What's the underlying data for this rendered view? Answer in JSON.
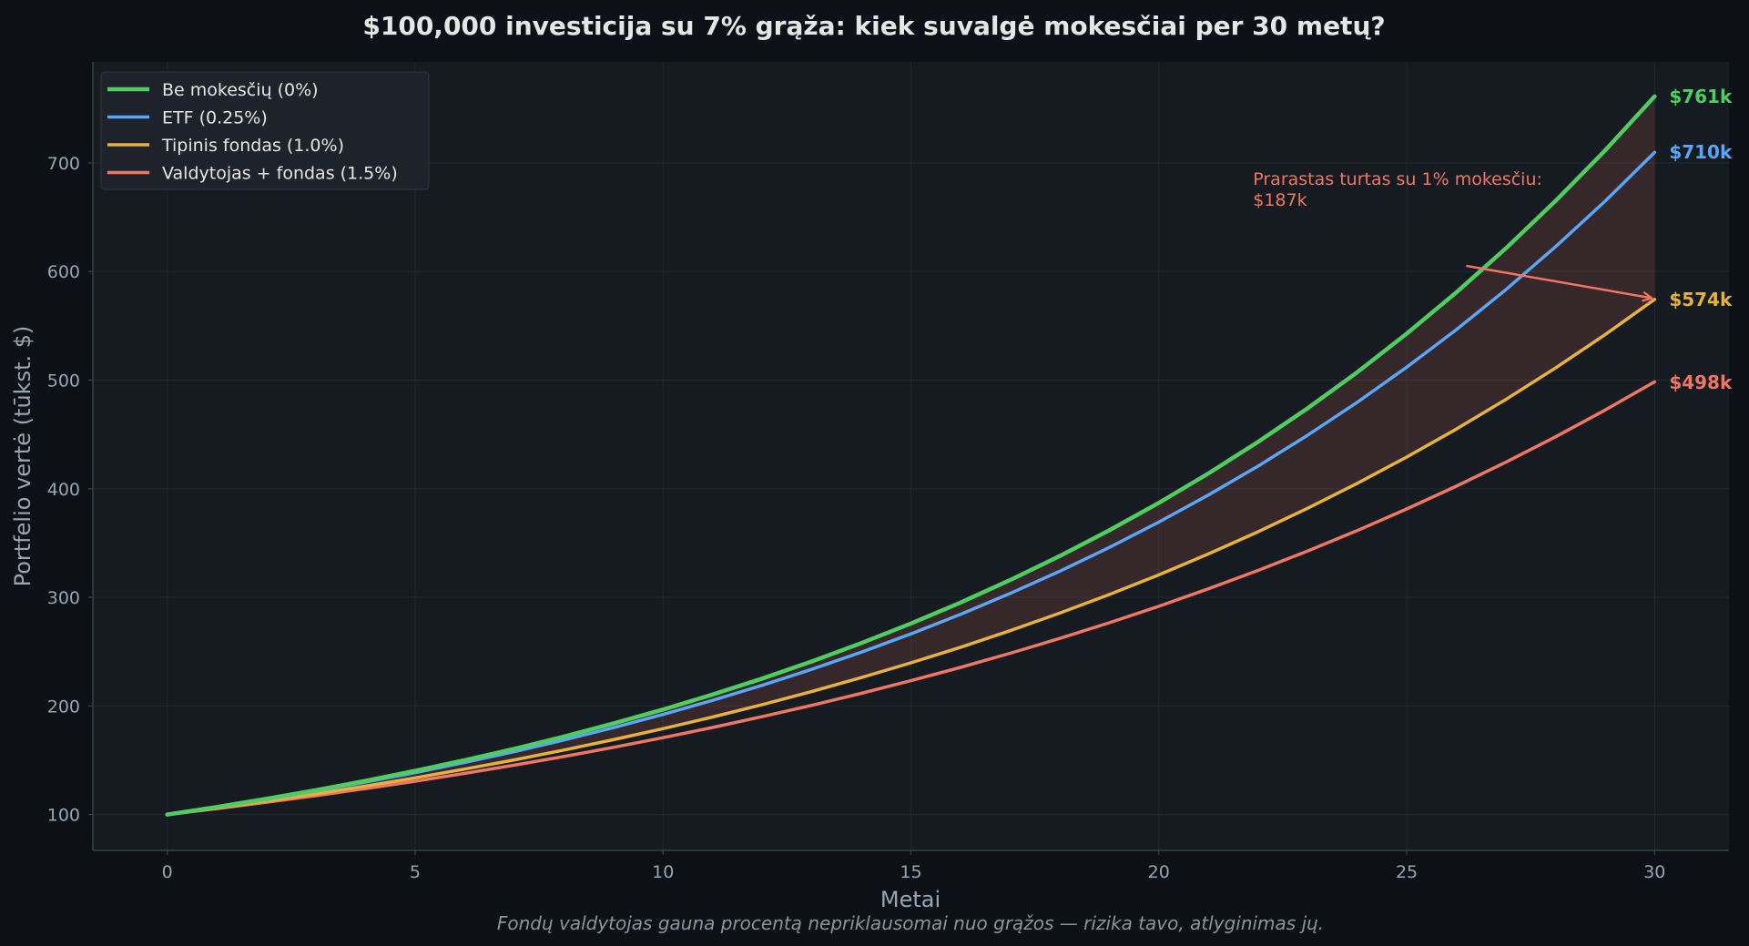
{
  "chart_data": {
    "type": "line",
    "title": "$100,000 investicija su 7% grąža: kiek suvalgė mokesčiai per 30 metų?",
    "xlabel": "Metai",
    "ylabel": "Portfelio vertė (tūkst. $)",
    "caption": "Fondų valdytojas gauna procentą nepriklausomai nuo grąžos — rizika tavo, atlyginimas jų.",
    "xlim": [
      -1.5,
      31.5
    ],
    "ylim": [
      67,
      793
    ],
    "x_ticks": [
      0,
      5,
      10,
      15,
      20,
      25,
      30
    ],
    "y_ticks": [
      100,
      200,
      300,
      400,
      500,
      600,
      700
    ],
    "grid": true,
    "legend_position": "top-left",
    "principal": 100,
    "gross_return": 0.07,
    "years": 30,
    "series": [
      {
        "name": "Be mokesčių (0%)",
        "fee": 0.0,
        "color": "#4fce60",
        "end_label": "$761k",
        "end_value": 761
      },
      {
        "name": "ETF (0.25%)",
        "fee": 0.0025,
        "color": "#58a6f5",
        "end_label": "$710k",
        "end_value": 710
      },
      {
        "name": "Tipinis fondas (1.0%)",
        "fee": 0.01,
        "color": "#e8b13e",
        "end_label": "$574k",
        "end_value": 574
      },
      {
        "name": "Valdytojas + fondas (1.5%)",
        "fee": 0.015,
        "color": "#f07562",
        "end_label": "$498k",
        "end_value": 498
      }
    ],
    "fill_between": {
      "upper_series": 0,
      "lower_series": 2,
      "color": "#f07562"
    },
    "annotation": {
      "lines": [
        "Prarastas turtas su 1% mokesčiu:",
        "$187k"
      ],
      "color": "#f07562",
      "text_at": [
        21.9,
        680
      ],
      "arrow_from": [
        26.2,
        560
      ],
      "arrow_to": [
        30,
        574
      ]
    }
  },
  "colors": {
    "page_bg": "#0d1117",
    "plot_bg": "#161b22",
    "grid": "#222830",
    "axis": "#3a414b",
    "tick_text": "#9aa4b1",
    "title_text": "#e6e6e6",
    "caption_text": "#8b949e"
  }
}
